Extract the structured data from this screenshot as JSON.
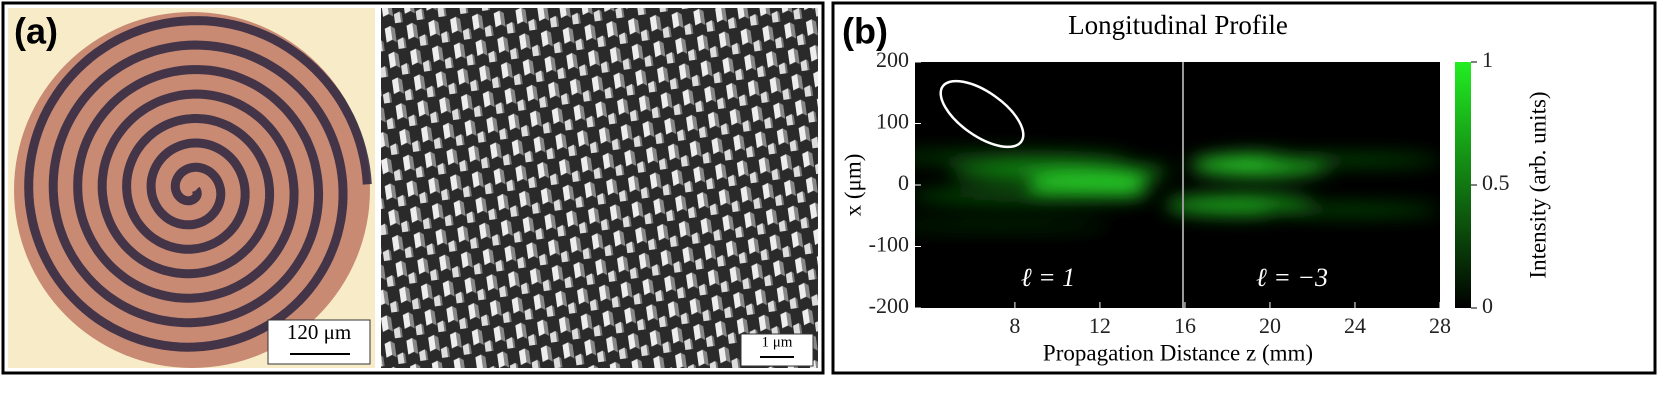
{
  "panel_a": {
    "label": "(a)",
    "scale_bar_left": "120 μm",
    "scale_bar_right": "1 μm"
  },
  "chart_data": {
    "type": "heatmap",
    "label": "(b)",
    "title": "Longitudinal Profile",
    "x_label": "Propagation Distance z (mm)",
    "y_label": "x (μm)",
    "xlim": [
      3.3,
      28
    ],
    "xticks": [
      8,
      12,
      16,
      20,
      24,
      28
    ],
    "ylim": [
      -200,
      200
    ],
    "yticks": [
      200,
      100,
      0,
      -100,
      -200
    ],
    "colorbar": {
      "label": "Intensity (arb. units)",
      "lim": [
        0,
        1
      ],
      "ticks": [
        0,
        0.5,
        1
      ],
      "colors": [
        "#000000",
        "#22ee22"
      ]
    },
    "annotations": [
      "ℓ = 1",
      "ℓ = −3"
    ]
  }
}
